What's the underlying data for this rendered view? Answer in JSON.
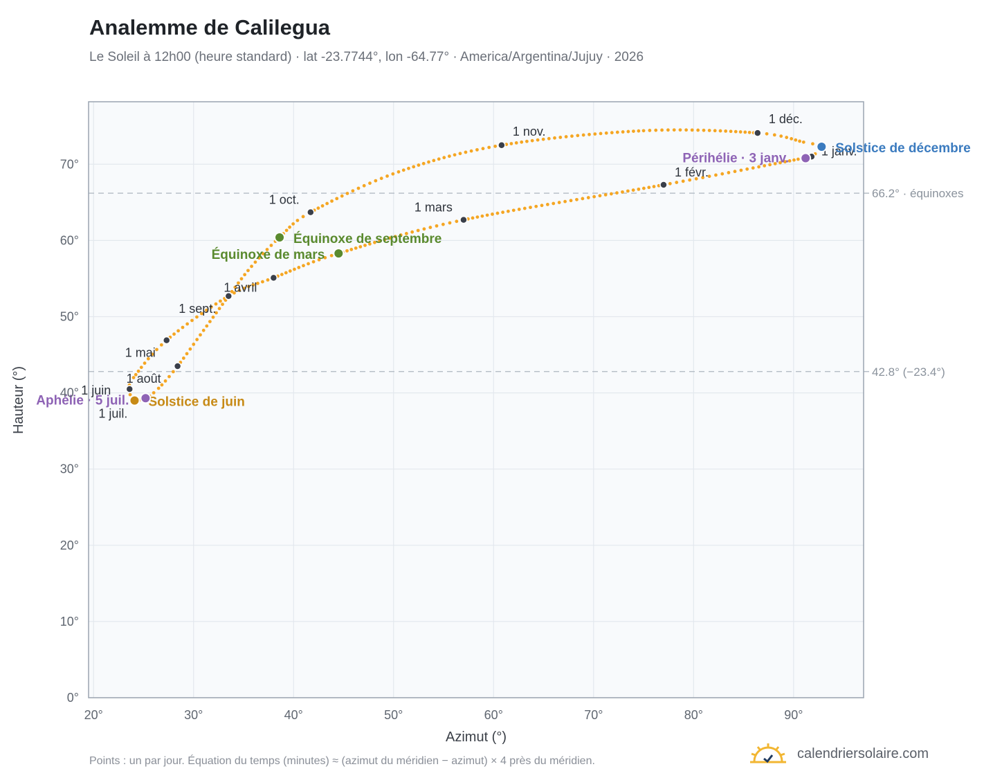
{
  "header": {
    "title": "Analemme de Calilegua",
    "subtitle": "Le Soleil à 12h00 (heure standard) · lat -23.7744°, lon -64.77° · America/Argentina/Jujuy · 2026"
  },
  "footer": {
    "note": "Points : un par jour. Équation du temps (minutes) ≈ (azimut du méridien − azimut) × 4 près du méridien.",
    "brand": "calendriersolaire.com"
  },
  "colors": {
    "curve": "#f5a623",
    "month_marker": "#3a3f4a",
    "equinox": "#5a8a2e",
    "june_solstice": "#c78a16",
    "december_solstice": "#3b7bbf",
    "apsides": "#8e63b5",
    "reference_line": "#b8c0c9",
    "plot_bg": "#f8fafc",
    "grid": "#e3e8ee"
  },
  "chart_data": {
    "type": "scatter",
    "xlabel": "Azimut (°)",
    "ylabel": "Hauteur (°)",
    "xlim": [
      19.5,
      97.0
    ],
    "ylim": [
      0,
      78.2
    ],
    "x_ticks": [
      20,
      30,
      40,
      50,
      60,
      70,
      80,
      90
    ],
    "x_tick_labels": [
      "20°",
      "30°",
      "40°",
      "50°",
      "60°",
      "70°",
      "80°",
      "90°"
    ],
    "y_ticks": [
      0,
      10,
      20,
      30,
      40,
      50,
      60,
      70
    ],
    "y_tick_labels": [
      "0°",
      "10°",
      "20°",
      "30°",
      "40°",
      "50°",
      "60°",
      "70°"
    ],
    "grid": true,
    "reference_lines": [
      {
        "y": 66.2,
        "label": "66.2° · équinoxes"
      },
      {
        "y": 42.8,
        "label": "42.8° (−23.4°)"
      }
    ],
    "analemma_keypoints": [
      {
        "x": 91.8,
        "y": 71.0
      },
      {
        "x": 77.0,
        "y": 67.3
      },
      {
        "x": 57.0,
        "y": 62.7
      },
      {
        "x": 44.5,
        "y": 58.3
      },
      {
        "x": 38.0,
        "y": 55.1
      },
      {
        "x": 33.5,
        "y": 52.7
      },
      {
        "x": 27.3,
        "y": 46.9
      },
      {
        "x": 24.0,
        "y": 42.0
      },
      {
        "x": 23.6,
        "y": 40.5
      },
      {
        "x": 23.8,
        "y": 39.2
      },
      {
        "x": 24.1,
        "y": 39.0
      },
      {
        "x": 25.2,
        "y": 39.3
      },
      {
        "x": 26.5,
        "y": 40.6
      },
      {
        "x": 28.4,
        "y": 43.5
      },
      {
        "x": 31.0,
        "y": 48.2
      },
      {
        "x": 33.5,
        "y": 52.7
      },
      {
        "x": 35.8,
        "y": 56.6
      },
      {
        "x": 38.6,
        "y": 60.4
      },
      {
        "x": 41.7,
        "y": 63.7
      },
      {
        "x": 50.5,
        "y": 69.0
      },
      {
        "x": 60.8,
        "y": 72.5
      },
      {
        "x": 75.0,
        "y": 74.4
      },
      {
        "x": 86.4,
        "y": 74.1
      },
      {
        "x": 91.0,
        "y": 72.9
      },
      {
        "x": 92.8,
        "y": 72.3
      },
      {
        "x": 91.8,
        "y": 71.0
      }
    ],
    "month_markers": [
      {
        "label": "1 janv.",
        "x": 91.8,
        "y": 71.0
      },
      {
        "label": "1 févr.",
        "x": 77.0,
        "y": 67.3
      },
      {
        "label": "1 mars",
        "x": 57.0,
        "y": 62.7
      },
      {
        "label": "1 avril",
        "x": 38.0,
        "y": 55.1
      },
      {
        "label": "1 mai",
        "x": 27.3,
        "y": 46.9
      },
      {
        "label": "1 juin",
        "x": 23.6,
        "y": 40.5
      },
      {
        "label": "1 juil.",
        "x": 25.2,
        "y": 39.3
      },
      {
        "label": "1 août",
        "x": 28.4,
        "y": 43.5
      },
      {
        "label": "1 sept.",
        "x": 33.5,
        "y": 52.7
      },
      {
        "label": "1 oct.",
        "x": 41.7,
        "y": 63.7
      },
      {
        "label": "1 nov.",
        "x": 60.8,
        "y": 72.5
      },
      {
        "label": "1 déc.",
        "x": 86.4,
        "y": 74.1
      }
    ],
    "events": [
      {
        "label": "Équinoxe de mars",
        "x": 44.5,
        "y": 58.3,
        "color": "#5a8a2e"
      },
      {
        "label": "Équinoxe de septembre",
        "x": 38.6,
        "y": 60.4,
        "color": "#5a8a2e"
      },
      {
        "label": "Solstice de juin",
        "x": 24.1,
        "y": 39.0,
        "color": "#c78a16"
      },
      {
        "label": "Solstice de décembre",
        "x": 92.8,
        "y": 72.3,
        "color": "#3b7bbf"
      },
      {
        "label": "Périhélie · 3 janv.",
        "x": 91.2,
        "y": 70.8,
        "color": "#8e63b5"
      },
      {
        "label": "Aphélie · 5 juil.",
        "x": 25.2,
        "y": 39.3,
        "color": "#8e63b5"
      }
    ]
  }
}
